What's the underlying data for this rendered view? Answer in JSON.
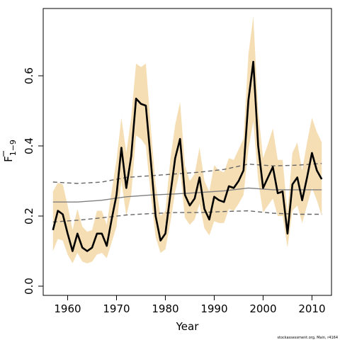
{
  "chart_data": {
    "type": "line",
    "xlabel": "Year",
    "ylabel": {
      "main": "F",
      "subscript": "1−9"
    },
    "credit": "stockassessment.org, Main, r4164",
    "xlim": [
      1955,
      2014
    ],
    "ylim": [
      0.0,
      0.8
    ],
    "x_ticks": [
      1960,
      1970,
      1980,
      1990,
      2000,
      2010
    ],
    "y_ticks": [
      0.0,
      0.2,
      0.4,
      0.6
    ],
    "y_tick_labels": [
      "0.0",
      "0.2",
      "0.4",
      "0.6"
    ],
    "grid": false,
    "colors": {
      "band": "#f5deb3",
      "estimate": "#000000",
      "mean": "#7f7f7f",
      "mean_ci": "#666666"
    },
    "series": [
      {
        "x": [
          1957,
          1958,
          1959,
          1960,
          1961,
          1962,
          1963,
          1964,
          1965,
          1966,
          1967,
          1968,
          1969,
          1970,
          1971,
          1972,
          1973,
          1974,
          1975,
          1976,
          1977,
          1978,
          1979,
          1980,
          1981,
          1982,
          1983,
          1984,
          1985,
          1986,
          1987,
          1988,
          1989,
          1990,
          1991,
          1992,
          1993,
          1994,
          1995,
          1996,
          1997,
          1998,
          1999,
          2000,
          2001,
          2002,
          2003,
          2004,
          2005,
          2006,
          2007,
          2008,
          2009,
          2010,
          2011,
          2012
        ],
        "values": [
          0.16,
          0.215,
          0.205,
          0.15,
          0.1,
          0.15,
          0.11,
          0.1,
          0.11,
          0.15,
          0.15,
          0.115,
          0.19,
          0.26,
          0.395,
          0.28,
          0.37,
          0.535,
          0.52,
          0.515,
          0.36,
          0.2,
          0.13,
          0.15,
          0.26,
          0.365,
          0.42,
          0.26,
          0.23,
          0.25,
          0.31,
          0.22,
          0.19,
          0.255,
          0.245,
          0.24,
          0.285,
          0.28,
          0.3,
          0.33,
          0.53,
          0.64,
          0.4,
          0.28,
          0.31,
          0.34,
          0.265,
          0.27,
          0.15,
          0.29,
          0.31,
          0.245,
          0.31,
          0.38,
          0.33,
          0.305
        ],
        "lower": [
          0.1,
          0.135,
          0.13,
          0.09,
          0.065,
          0.095,
          0.07,
          0.065,
          0.07,
          0.09,
          0.095,
          0.08,
          0.125,
          0.17,
          0.3,
          0.2,
          0.26,
          0.43,
          0.42,
          0.4,
          0.26,
          0.14,
          0.095,
          0.105,
          0.18,
          0.27,
          0.33,
          0.195,
          0.175,
          0.19,
          0.235,
          0.165,
          0.145,
          0.185,
          0.18,
          0.18,
          0.22,
          0.215,
          0.235,
          0.26,
          0.39,
          0.47,
          0.3,
          0.21,
          0.23,
          0.25,
          0.2,
          0.2,
          0.11,
          0.215,
          0.23,
          0.18,
          0.23,
          0.28,
          0.245,
          0.2
        ],
        "upper": [
          0.27,
          0.295,
          0.29,
          0.23,
          0.16,
          0.22,
          0.17,
          0.155,
          0.16,
          0.215,
          0.215,
          0.175,
          0.27,
          0.36,
          0.48,
          0.38,
          0.48,
          0.635,
          0.625,
          0.635,
          0.455,
          0.29,
          0.2,
          0.215,
          0.36,
          0.46,
          0.525,
          0.345,
          0.3,
          0.32,
          0.395,
          0.3,
          0.27,
          0.345,
          0.33,
          0.325,
          0.365,
          0.36,
          0.39,
          0.42,
          0.66,
          0.77,
          0.5,
          0.365,
          0.405,
          0.45,
          0.36,
          0.36,
          0.21,
          0.38,
          0.41,
          0.33,
          0.41,
          0.48,
          0.44,
          0.41
        ]
      },
      {
        "x": [
          1957,
          1962,
          1967,
          1972,
          1977,
          1982,
          1987,
          1992,
          1997,
          2002,
          2007,
          2012
        ],
        "values": [
          0.24,
          0.24,
          0.245,
          0.255,
          0.26,
          0.263,
          0.267,
          0.272,
          0.28,
          0.275,
          0.275,
          0.275
        ]
      },
      {
        "x": [
          1957,
          1962,
          1967,
          1972,
          1977,
          1982,
          1987,
          1992,
          1997,
          2002,
          2007,
          2012
        ],
        "values": [
          0.297,
          0.293,
          0.297,
          0.31,
          0.315,
          0.32,
          0.325,
          0.333,
          0.348,
          0.343,
          0.345,
          0.35
        ]
      },
      {
        "x": [
          1957,
          1962,
          1967,
          1972,
          1977,
          1982,
          1987,
          1992,
          1997,
          2002,
          2007,
          2012
        ],
        "values": [
          0.183,
          0.188,
          0.195,
          0.203,
          0.207,
          0.21,
          0.21,
          0.213,
          0.215,
          0.208,
          0.205,
          0.205
        ]
      }
    ]
  }
}
